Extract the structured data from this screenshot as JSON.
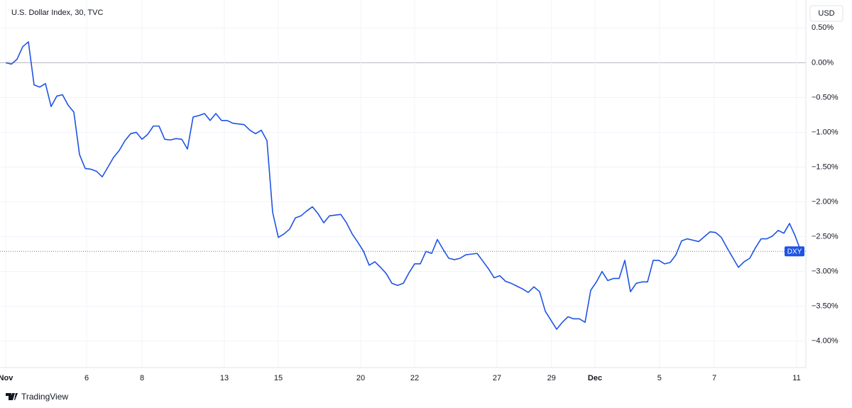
{
  "chart_data": {
    "type": "line",
    "title": "U.S. Dollar Index, 30, TVC",
    "currency": "USD",
    "series": [
      {
        "name": "DXY",
        "color": "#1e53e5",
        "values": [
          0.0,
          -0.02,
          0.05,
          0.23,
          0.3,
          -0.32,
          -0.35,
          -0.3,
          -0.63,
          -0.48,
          -0.46,
          -0.61,
          -0.71,
          -1.32,
          -1.52,
          -1.53,
          -1.56,
          -1.64,
          -1.5,
          -1.36,
          -1.26,
          -1.12,
          -1.02,
          -1.0,
          -1.1,
          -1.03,
          -0.91,
          -0.91,
          -1.1,
          -1.11,
          -1.09,
          -1.1,
          -1.24,
          -0.78,
          -0.76,
          -0.73,
          -0.83,
          -0.73,
          -0.83,
          -0.83,
          -0.87,
          -0.88,
          -0.89,
          -0.97,
          -1.02,
          -0.97,
          -1.12,
          -2.15,
          -2.51,
          -2.46,
          -2.39,
          -2.23,
          -2.2,
          -2.13,
          -2.07,
          -2.17,
          -2.3,
          -2.2,
          -2.19,
          -2.18,
          -2.3,
          -2.46,
          -2.58,
          -2.71,
          -2.91,
          -2.86,
          -2.94,
          -3.03,
          -3.17,
          -3.2,
          -3.17,
          -3.02,
          -2.89,
          -2.89,
          -2.71,
          -2.74,
          -2.54,
          -2.68,
          -2.81,
          -2.83,
          -2.81,
          -2.76,
          -2.75,
          -2.74,
          -2.85,
          -2.96,
          -3.09,
          -3.06,
          -3.14,
          -3.17,
          -3.21,
          -3.25,
          -3.3,
          -3.22,
          -3.29,
          -3.57,
          -3.7,
          -3.83,
          -3.73,
          -3.65,
          -3.68,
          -3.68,
          -3.73,
          -3.27,
          -3.15,
          -3.0,
          -3.13,
          -3.1,
          -3.1,
          -2.84,
          -3.29,
          -3.17,
          -3.15,
          -3.15,
          -2.84,
          -2.84,
          -2.89,
          -2.87,
          -2.76,
          -2.56,
          -2.53,
          -2.55,
          -2.57,
          -2.5,
          -2.43,
          -2.44,
          -2.51,
          -2.66,
          -2.8,
          -2.94,
          -2.86,
          -2.81,
          -2.66,
          -2.53,
          -2.53,
          -2.49,
          -2.41,
          -2.45,
          -2.31,
          -2.49,
          -2.71
        ]
      }
    ],
    "xlim": [
      -1,
      140.875
    ],
    "xticks": [
      {
        "value": 0,
        "label": "Nov"
      },
      {
        "value": 14.25,
        "label": "6"
      },
      {
        "value": 24,
        "label": "8"
      },
      {
        "value": 38.5,
        "label": "13"
      },
      {
        "value": 48,
        "label": "15"
      },
      {
        "value": 62.5,
        "label": "20"
      },
      {
        "value": 72,
        "label": "22"
      },
      {
        "value": 86.5,
        "label": "27"
      },
      {
        "value": 96.1,
        "label": "29"
      },
      {
        "value": 103.75,
        "label": "Dec"
      },
      {
        "value": 115.1,
        "label": "5"
      },
      {
        "value": 124.75,
        "label": "7"
      },
      {
        "value": 139.25,
        "label": "11"
      }
    ],
    "ylim": [
      -4.38,
      0.85
    ],
    "yticks": [
      {
        "value": 0.5,
        "label": "0.50%"
      },
      {
        "value": 0,
        "label": "0.00%"
      },
      {
        "value": -0.5,
        "label": "−0.50%"
      },
      {
        "value": -1,
        "label": "−1.00%"
      },
      {
        "value": -1.5,
        "label": "−1.50%"
      },
      {
        "value": -2,
        "label": "−2.00%"
      },
      {
        "value": -2.5,
        "label": "−2.50%"
      },
      {
        "value": -3,
        "label": "−3.00%"
      },
      {
        "value": -3.5,
        "label": "−3.50%"
      },
      {
        "value": -4,
        "label": "−4.00%"
      }
    ],
    "grid": true
  },
  "footer": "TradingView"
}
